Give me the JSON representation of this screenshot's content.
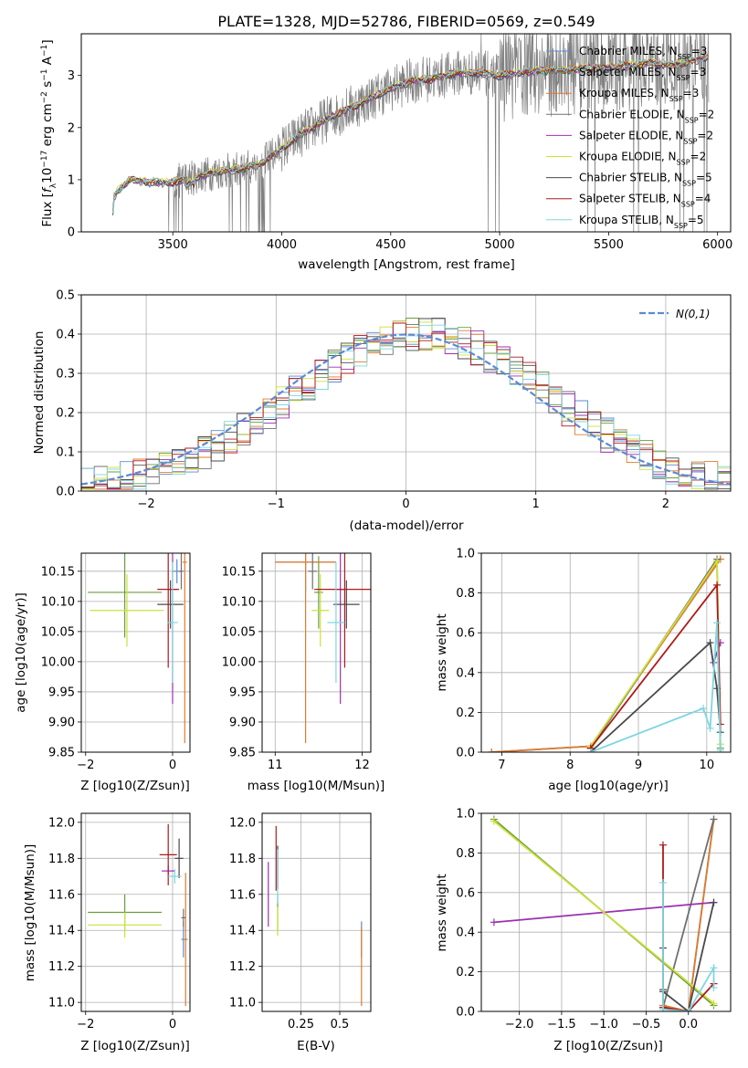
{
  "colors": {
    "chabrier_miles": "#5b8ad6",
    "salpeter_miles": "#6a9e3f",
    "kroupa_miles": "#e07b2a",
    "chabrier_elodie": "#707070",
    "salpeter_elodie": "#9b30b0",
    "kroupa_elodie": "#cde03a",
    "chabrier_stelib": "#4a4a4a",
    "salpeter_stelib": "#b01818",
    "kroupa_stelib": "#7fd6e0",
    "data": "#808080",
    "normal": "#5b8ad6"
  },
  "chart_data": [
    {
      "id": "spectrum",
      "type": "line",
      "title": "PLATE=1328, MJD=52786, FIBERID=0569, z=0.549",
      "xlabel": "wavelength [Angstrom, rest frame]",
      "ylabel": "Flux [f$_\\lambda$10$^{-17}$ erg cm$^{-2}$ s$^{-1}$ A$^{-1}$]",
      "xlim": [
        3080,
        6060
      ],
      "ylim": [
        0,
        3.8
      ],
      "xticks": [
        3500,
        4000,
        4500,
        5000,
        5500,
        6000
      ],
      "yticks": [
        0,
        1,
        2,
        3
      ],
      "legend_position": "top-right",
      "legend": [
        {
          "label": "Chabrier MILES, N",
          "sub": "SSP",
          "tail": "=3",
          "color": "chabrier_miles"
        },
        {
          "label": "Salpeter MILES, N",
          "sub": "SSP",
          "tail": "=3",
          "color": "salpeter_miles"
        },
        {
          "label": "Kroupa MILES, N",
          "sub": "SSP",
          "tail": "=3",
          "color": "kroupa_miles"
        },
        {
          "label": "Chabrier ELODIE, N",
          "sub": "SSP",
          "tail": "=2",
          "color": "chabrier_elodie"
        },
        {
          "label": "Salpeter ELODIE, N",
          "sub": "SSP",
          "tail": "=2",
          "color": "salpeter_elodie"
        },
        {
          "label": "Kroupa ELODIE, N",
          "sub": "SSP",
          "tail": "=2",
          "color": "kroupa_elodie"
        },
        {
          "label": "Chabrier STELIB, N",
          "sub": "SSP",
          "tail": "=5",
          "color": "chabrier_stelib"
        },
        {
          "label": "Salpeter STELIB, N",
          "sub": "SSP",
          "tail": "=4",
          "color": "salpeter_stelib"
        },
        {
          "label": "Kroupa STELIB, N",
          "sub": "SSP",
          "tail": "=5",
          "color": "kroupa_stelib"
        }
      ],
      "model_continuum": {
        "x": [
          3220,
          3230,
          3300,
          3400,
          3500,
          3600,
          3700,
          3800,
          3900,
          4000,
          4100,
          4200,
          4300,
          4400,
          4500,
          4600,
          4700,
          4800,
          4900,
          5000,
          5100,
          5200,
          5300,
          5400,
          5500,
          5600,
          5700,
          5800,
          5900,
          5960
        ],
        "y": [
          0.0,
          0.7,
          1.0,
          0.95,
          0.95,
          1.05,
          1.15,
          1.2,
          1.3,
          1.6,
          1.9,
          2.15,
          2.35,
          2.55,
          2.75,
          2.9,
          2.95,
          3.05,
          3.05,
          3.0,
          3.05,
          3.1,
          3.1,
          3.15,
          3.15,
          3.2,
          3.25,
          3.2,
          3.3,
          3.35
        ]
      }
    },
    {
      "id": "residuals",
      "type": "area",
      "xlabel": "(data-model)/error",
      "ylabel": "Normed distribution",
      "xlim": [
        -2.5,
        2.5
      ],
      "ylim": [
        0,
        0.5
      ],
      "xticks": [
        -2,
        -1,
        0,
        1,
        2
      ],
      "yticks": [
        0.0,
        0.1,
        0.2,
        0.3,
        0.4,
        0.5
      ],
      "normal_label": "N(0,1)",
      "legend_position": "top-right",
      "bins": 50
    },
    {
      "id": "age_vs_Z",
      "type": "scatter",
      "xlabel": "Z [log10(Z/Zsun)]",
      "ylabel": "age  [log10(age/yr)]",
      "xlim": [
        -2.1,
        0.4
      ],
      "ylim": [
        9.85,
        10.18
      ],
      "xticks": [
        -2,
        0
      ],
      "yticks": [
        9.85,
        9.9,
        9.95,
        10.0,
        10.05,
        10.1,
        10.15
      ],
      "points": [
        {
          "s": "chabrier_miles",
          "x": 0.1,
          "xerr": 0.1,
          "y": 10.15,
          "yerr": 0.02
        },
        {
          "s": "salpeter_miles",
          "x": -1.1,
          "xerr": 0.85,
          "y": 10.115,
          "yerr": 0.075
        },
        {
          "s": "kroupa_miles",
          "x": 0.28,
          "xerr": 0.05,
          "y": 10.165,
          "yerr": 0.3
        },
        {
          "s": "chabrier_elodie",
          "x": 0.2,
          "xerr": 0.05,
          "y": 10.15,
          "yerr": 0.03
        },
        {
          "s": "salpeter_elodie",
          "x": 0.0,
          "xerr": 0.1,
          "y": 10.12,
          "yerr": 0.19
        },
        {
          "s": "kroupa_elodie",
          "x": -1.05,
          "xerr": 0.85,
          "y": 10.085,
          "yerr": 0.06
        },
        {
          "s": "chabrier_stelib",
          "x": -0.05,
          "xerr": 0.3,
          "y": 10.095,
          "yerr": 0.04
        },
        {
          "s": "salpeter_stelib",
          "x": -0.1,
          "xerr": 0.25,
          "y": 10.12,
          "yerr": 0.13
        },
        {
          "s": "kroupa_stelib",
          "x": 0.0,
          "xerr": 0.12,
          "y": 10.065,
          "yerr": 0.1
        }
      ]
    },
    {
      "id": "age_vs_mass",
      "type": "scatter",
      "xlabel": "mass [log10(M/Msun)]",
      "ylabel": "",
      "xlim": [
        10.85,
        12.1
      ],
      "ylim": [
        9.85,
        10.18
      ],
      "xticks": [
        11,
        12
      ],
      "yticks": [
        9.85,
        9.9,
        9.95,
        10.0,
        10.05,
        10.1,
        10.15
      ],
      "points": [
        {
          "s": "chabrier_miles",
          "x": 11.35,
          "xerr": 0.35,
          "y": 10.165,
          "yerr": 0.05
        },
        {
          "s": "salpeter_miles",
          "x": 11.5,
          "xerr": 0.05,
          "y": 10.115,
          "yerr": 0.06
        },
        {
          "s": "kroupa_miles",
          "x": 11.35,
          "xerr": 0.35,
          "y": 10.165,
          "yerr": 0.3
        },
        {
          "s": "chabrier_elodie",
          "x": 11.43,
          "xerr": 0.05,
          "y": 10.15,
          "yerr": 0.03
        },
        {
          "s": "salpeter_elodie",
          "x": 11.75,
          "xerr": 0.05,
          "y": 10.12,
          "yerr": 0.19
        },
        {
          "s": "kroupa_elodie",
          "x": 11.52,
          "xerr": 0.1,
          "y": 10.085,
          "yerr": 0.06
        },
        {
          "s": "chabrier_stelib",
          "x": 11.82,
          "xerr": 0.15,
          "y": 10.095,
          "yerr": 0.04
        },
        {
          "s": "salpeter_stelib",
          "x": 11.8,
          "xerr": 0.35,
          "y": 10.12,
          "yerr": 0.13
        },
        {
          "s": "kroupa_stelib",
          "x": 11.7,
          "xerr": 0.1,
          "y": 10.065,
          "yerr": 0.1
        }
      ]
    },
    {
      "id": "weight_vs_age",
      "type": "line",
      "xlabel": "age  [log10(age/yr)]",
      "ylabel": "mass weight",
      "xlim": [
        6.7,
        10.35
      ],
      "ylim": [
        0,
        1.0
      ],
      "xticks": [
        7,
        8,
        9,
        10
      ],
      "yticks": [
        0.0,
        0.2,
        0.4,
        0.6,
        0.8,
        1.0
      ],
      "series": [
        {
          "s": "chabrier_miles",
          "x": [
            6.85,
            8.3,
            10.2
          ],
          "y": [
            0.0,
            0.03,
            0.97
          ]
        },
        {
          "s": "salpeter_miles",
          "x": [
            8.3,
            10.15,
            10.2
          ],
          "y": [
            0.02,
            0.96,
            0.02
          ]
        },
        {
          "s": "kroupa_miles",
          "x": [
            6.85,
            8.3,
            10.2
          ],
          "y": [
            0.0,
            0.03,
            0.97
          ]
        },
        {
          "s": "chabrier_elodie",
          "x": [
            8.3,
            10.15
          ],
          "y": [
            0.02,
            0.97
          ]
        },
        {
          "s": "salpeter_elodie",
          "x": [
            10.1,
            10.2
          ],
          "y": [
            0.45,
            0.55
          ]
        },
        {
          "s": "kroupa_elodie",
          "x": [
            8.3,
            10.15,
            10.2
          ],
          "y": [
            0.03,
            0.96,
            0.04
          ]
        },
        {
          "s": "chabrier_stelib",
          "x": [
            8.3,
            10.05,
            10.15,
            10.2
          ],
          "y": [
            0.0,
            0.55,
            0.32,
            0.1
          ]
        },
        {
          "s": "salpeter_stelib",
          "x": [
            8.3,
            10.15,
            10.2
          ],
          "y": [
            0.02,
            0.84,
            0.14
          ]
        },
        {
          "s": "kroupa_stelib",
          "x": [
            8.3,
            9.95,
            10.05,
            10.15,
            10.2
          ],
          "y": [
            0.0,
            0.22,
            0.12,
            0.65,
            0.01
          ]
        }
      ]
    },
    {
      "id": "mass_vs_Z",
      "type": "scatter",
      "xlabel": "Z [log10(Z/Zsun)]",
      "ylabel": "mass [log10(M/Msun)]",
      "xlim": [
        -2.1,
        0.4
      ],
      "ylim": [
        10.95,
        12.05
      ],
      "xticks": [
        -2,
        0
      ],
      "yticks": [
        11.0,
        11.2,
        11.4,
        11.6,
        11.8,
        12.0
      ],
      "points": [
        {
          "s": "chabrier_miles",
          "x": 0.25,
          "xerr": 0.05,
          "y": 11.35,
          "yerr": 0.1
        },
        {
          "s": "salpeter_miles",
          "x": -1.1,
          "xerr": 0.85,
          "y": 11.5,
          "yerr": 0.1
        },
        {
          "s": "kroupa_miles",
          "x": 0.3,
          "xerr": 0.05,
          "y": 11.35,
          "yerr": 0.37
        },
        {
          "s": "chabrier_elodie",
          "x": 0.25,
          "xerr": 0.05,
          "y": 11.47,
          "yerr": 0.05
        },
        {
          "s": "salpeter_elodie",
          "x": -0.1,
          "xerr": 0.15,
          "y": 11.73,
          "yerr": 0.03
        },
        {
          "s": "kroupa_elodie",
          "x": -1.1,
          "xerr": 0.85,
          "y": 11.43,
          "yerr": 0.07
        },
        {
          "s": "chabrier_stelib",
          "x": 0.15,
          "xerr": 0.1,
          "y": 11.8,
          "yerr": 0.11
        },
        {
          "s": "salpeter_stelib",
          "x": -0.1,
          "xerr": 0.2,
          "y": 11.82,
          "yerr": 0.17
        },
        {
          "s": "kroupa_stelib",
          "x": 0.05,
          "xerr": 0.15,
          "y": 11.7,
          "yerr": 0.04
        }
      ]
    },
    {
      "id": "mass_vs_ebv",
      "type": "scatter",
      "xlabel": "E(B-V)",
      "ylabel": "",
      "xlim": [
        0.0,
        0.7
      ],
      "ylim": [
        10.95,
        12.05
      ],
      "xticks": [
        0.25,
        0.5
      ],
      "yticks": [
        11.0,
        11.2,
        11.4,
        11.6,
        11.8,
        12.0
      ],
      "points": [
        {
          "s": "chabrier_miles",
          "x": 0.64,
          "xerr": 0,
          "y": 11.35,
          "yerr": 0.1
        },
        {
          "s": "salpeter_miles",
          "x": 0.1,
          "xerr": 0,
          "y": 11.5,
          "yerr": 0.1
        },
        {
          "s": "kroupa_miles",
          "x": 0.64,
          "xerr": 0,
          "y": 11.2,
          "yerr": 0.22
        },
        {
          "s": "chabrier_elodie",
          "x": 0.1,
          "xerr": 0,
          "y": 11.75,
          "yerr": 0.12
        },
        {
          "s": "salpeter_elodie",
          "x": 0.04,
          "xerr": 0,
          "y": 11.6,
          "yerr": 0.18
        },
        {
          "s": "kroupa_elodie",
          "x": 0.1,
          "xerr": 0,
          "y": 11.45,
          "yerr": 0.08
        },
        {
          "s": "chabrier_stelib",
          "x": 0.1,
          "xerr": 0,
          "y": 11.75,
          "yerr": 0.12
        },
        {
          "s": "salpeter_stelib",
          "x": 0.09,
          "xerr": 0,
          "y": 11.8,
          "yerr": 0.18
        },
        {
          "s": "kroupa_stelib",
          "x": 0.1,
          "xerr": 0,
          "y": 11.7,
          "yerr": 0.15
        }
      ]
    },
    {
      "id": "weight_vs_Z",
      "type": "line",
      "xlabel": "Z [log10(Z/Zsun)]",
      "ylabel": "mass weight",
      "xlim": [
        -2.45,
        0.5
      ],
      "ylim": [
        0,
        1.0
      ],
      "xticks": [
        -2.0,
        -1.5,
        -1.0,
        -0.5,
        0.0
      ],
      "yticks": [
        0.0,
        0.2,
        0.4,
        0.6,
        0.8,
        1.0
      ],
      "series": [
        {
          "s": "chabrier_miles",
          "x": [
            -0.3,
            0.0,
            0.3
          ],
          "y": [
            0.03,
            0.0,
            0.97
          ]
        },
        {
          "s": "salpeter_miles",
          "x": [
            -2.3,
            0.3
          ],
          "y": [
            0.97,
            0.03
          ]
        },
        {
          "s": "kroupa_miles",
          "x": [
            -0.3,
            0.0,
            0.3
          ],
          "y": [
            0.03,
            0.0,
            0.97
          ]
        },
        {
          "s": "chabrier_elodie",
          "x": [
            -0.3,
            0.3
          ],
          "y": [
            0.02,
            0.97
          ]
        },
        {
          "s": "salpeter_elodie",
          "x": [
            -2.3,
            0.3
          ],
          "y": [
            0.45,
            0.55
          ]
        },
        {
          "s": "kroupa_elodie",
          "x": [
            -2.3,
            0.3
          ],
          "y": [
            0.96,
            0.04
          ]
        },
        {
          "s": "chabrier_stelib",
          "x": [
            -0.3,
            -0.3,
            -0.3,
            0.0,
            0.3
          ],
          "y": [
            0.32,
            0.11,
            0.1,
            0.0,
            0.55
          ]
        },
        {
          "s": "salpeter_stelib",
          "x": [
            -0.3,
            -0.3,
            0.0,
            0.3
          ],
          "y": [
            0.84,
            0.02,
            0.0,
            0.14
          ]
        },
        {
          "s": "kroupa_stelib",
          "x": [
            -0.3,
            -0.3,
            0.0,
            0.3,
            0.3
          ],
          "y": [
            0.65,
            0.01,
            0.0,
            0.22,
            0.12
          ]
        }
      ]
    }
  ]
}
